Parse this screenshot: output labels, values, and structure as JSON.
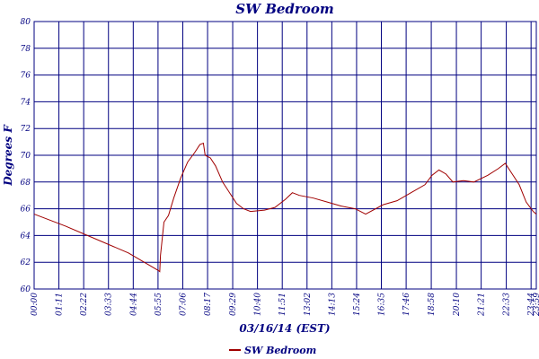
{
  "chart_data": {
    "type": "line",
    "title": "SW Bedroom",
    "x_label": "03/16/14 (EST)",
    "y_label": "Degrees F",
    "xlim": [
      0,
      1439
    ],
    "ylim": [
      60,
      80
    ],
    "xticks": [
      {
        "value": 0,
        "label": "00:00"
      },
      {
        "value": 71,
        "label": "01:11"
      },
      {
        "value": 142,
        "label": "02:22"
      },
      {
        "value": 213,
        "label": "03:33"
      },
      {
        "value": 284,
        "label": "04:44"
      },
      {
        "value": 355,
        "label": "05:55"
      },
      {
        "value": 426,
        "label": "07:06"
      },
      {
        "value": 497,
        "label": "08:17"
      },
      {
        "value": 569,
        "label": "09:29"
      },
      {
        "value": 640,
        "label": "10:40"
      },
      {
        "value": 711,
        "label": "11:51"
      },
      {
        "value": 782,
        "label": "13:02"
      },
      {
        "value": 853,
        "label": "14:13"
      },
      {
        "value": 924,
        "label": "15:24"
      },
      {
        "value": 995,
        "label": "16:35"
      },
      {
        "value": 1066,
        "label": "17:46"
      },
      {
        "value": 1138,
        "label": "18:58"
      },
      {
        "value": 1210,
        "label": "20:10"
      },
      {
        "value": 1281,
        "label": "21:21"
      },
      {
        "value": 1353,
        "label": "22:33"
      },
      {
        "value": 1424,
        "label": "23:44"
      },
      {
        "value": 1439,
        "label": "23:59"
      }
    ],
    "yticks": [
      60,
      62,
      64,
      66,
      68,
      70,
      72,
      74,
      76,
      78,
      80
    ],
    "grid": true,
    "legend": "bottom",
    "x": [
      0,
      90,
      180,
      270,
      355,
      360,
      362,
      372,
      385,
      400,
      420,
      440,
      460,
      475,
      485,
      490,
      505,
      520,
      540,
      560,
      580,
      600,
      620,
      660,
      690,
      720,
      740,
      760,
      800,
      840,
      880,
      920,
      950,
      1000,
      1040,
      1080,
      1120,
      1140,
      1160,
      1180,
      1200,
      1230,
      1260,
      1300,
      1330,
      1350,
      1370,
      1390,
      1410,
      1430,
      1439
    ],
    "series": [
      {
        "name": "SW Bedroom",
        "color": "#a00000",
        "values": [
          65.6,
          64.7,
          63.7,
          62.7,
          61.4,
          61.3,
          62.5,
          65.0,
          65.5,
          66.8,
          68.3,
          69.5,
          70.2,
          70.8,
          70.9,
          70.0,
          69.8,
          69.2,
          68.0,
          67.2,
          66.4,
          66.0,
          65.8,
          65.9,
          66.1,
          66.7,
          67.2,
          67.0,
          66.8,
          66.5,
          66.2,
          66.0,
          65.6,
          66.3,
          66.6,
          67.2,
          67.8,
          68.5,
          68.9,
          68.6,
          68.0,
          68.1,
          68.0,
          68.5,
          69.0,
          69.4,
          68.6,
          67.8,
          66.5,
          65.8,
          65.6
        ]
      }
    ]
  }
}
